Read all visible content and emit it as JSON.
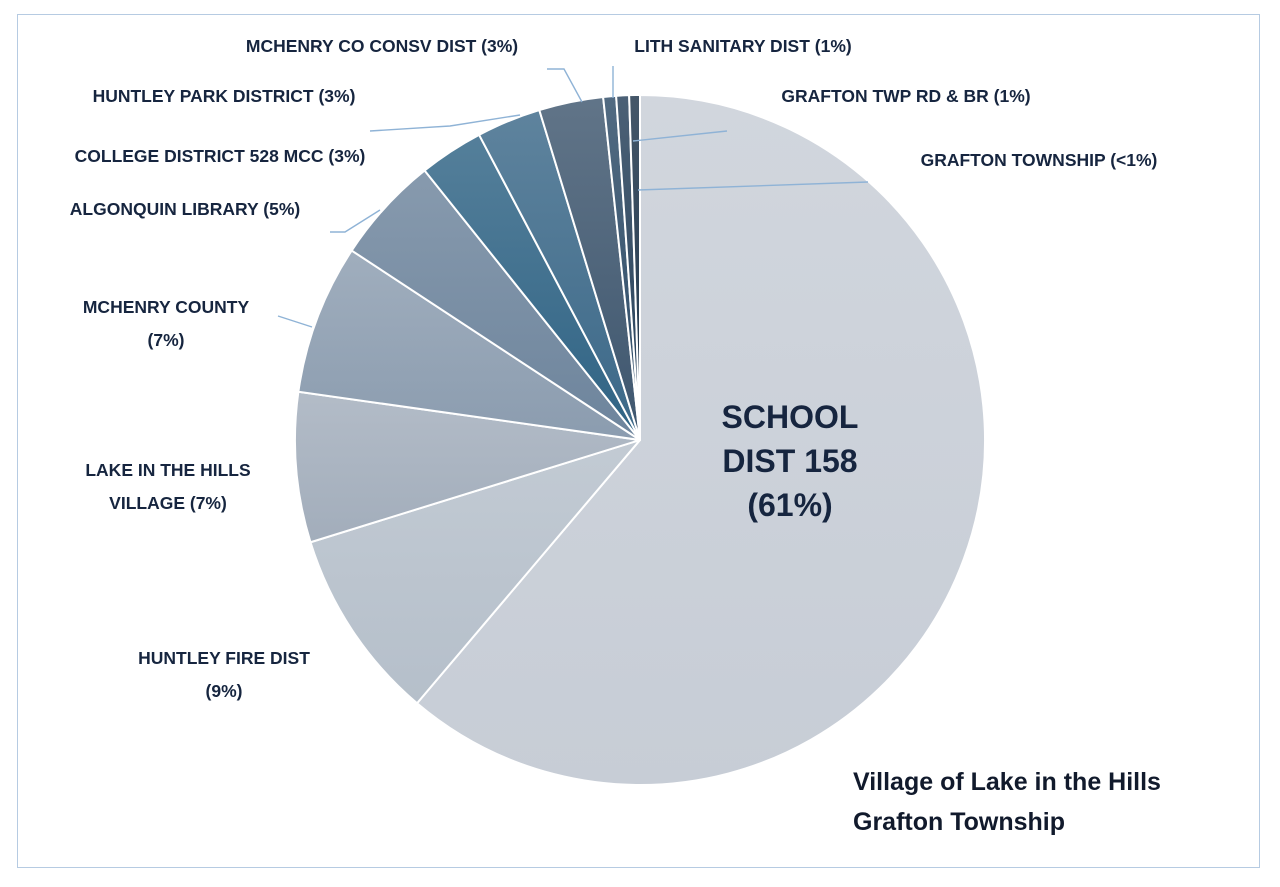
{
  "chart_data": {
    "type": "pie",
    "title": [
      "Village of Lake in the Hills",
      "Grafton Township"
    ],
    "legend": "none",
    "slices": [
      {
        "name": "SCHOOL DIST 158",
        "label": [
          "SCHOOL",
          "DIST 158",
          "(61%)"
        ],
        "value": 61,
        "color": "#c7cdd6"
      },
      {
        "name": "HUNTLEY FIRE DIST",
        "label": [
          "HUNTLEY FIRE DIST",
          "(9%)"
        ],
        "value": 9,
        "color": "#b5bfca"
      },
      {
        "name": "LAKE IN THE HILLS VILLAGE",
        "label": [
          "LAKE IN THE HILLS",
          "VILLAGE (7%)"
        ],
        "value": 7,
        "color": "#a2adbb"
      },
      {
        "name": "MCHENRY COUNTY",
        "label": [
          "MCHENRY COUNTY",
          "(7%)"
        ],
        "value": 7,
        "color": "#8b9caf"
      },
      {
        "name": "ALGONQUIN LIBRARY",
        "label": [
          "ALGONQUIN LIBRARY (5%)"
        ],
        "value": 5,
        "color": "#6d849c"
      },
      {
        "name": "COLLEGE DISTRICT 528 MCC",
        "label": [
          "COLLEGE DISTRICT 528 MCC (3%)"
        ],
        "value": 3,
        "color": "#2f6384"
      },
      {
        "name": "HUNTLEY PARK DISTRICT",
        "label": [
          "HUNTLEY PARK DISTRICT (3%)"
        ],
        "value": 3,
        "color": "#3b6888"
      },
      {
        "name": "MCHENRY CO CONSV DIST",
        "label": [
          "MCHENRY CO CONSV DIST (3%)"
        ],
        "value": 3,
        "color": "#3e566e"
      },
      {
        "name": "LITH SANITARY DIST",
        "label": [
          "LITH SANITARY DIST (1%)"
        ],
        "value": 0.6,
        "color": "#2c4a66"
      },
      {
        "name": "GRAFTON TWP RD & BR",
        "label": [
          "GRAFTON TWP RD & BR (1%)"
        ],
        "value": 0.6,
        "color": "#243e58"
      },
      {
        "name": "GRAFTON TOWNSHIP",
        "label": [
          "GRAFTON TOWNSHIP (<1%)"
        ],
        "value": 0.5,
        "color": "#1c3248"
      }
    ]
  }
}
